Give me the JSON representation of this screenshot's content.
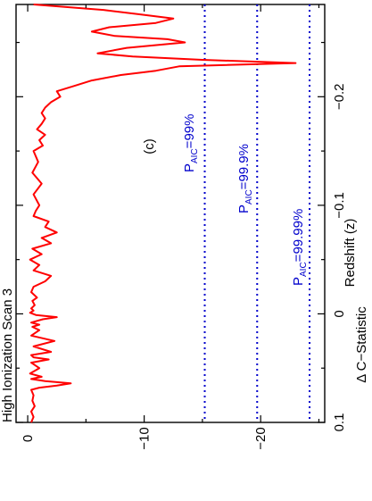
{
  "chart_data": {
    "type": "line",
    "title": "High Ionization Scan 3",
    "panel_label": "(c)",
    "xlabel": "Redshift (z)",
    "ylabel": "Δ C−Statistic",
    "xlim": [
      0.1,
      -0.285
    ],
    "ylim": [
      1,
      -25.5
    ],
    "x_ticks": [
      0.1,
      0,
      -0.1,
      -0.2
    ],
    "x_tick_labels": [
      "0.1",
      "0",
      "−0.1",
      "−0.2"
    ],
    "y_ticks": [
      0,
      -10,
      -20
    ],
    "y_tick_labels": [
      "0",
      "−10",
      "−20"
    ],
    "series": [
      {
        "color": "#ff0000",
        "x": [
          0.1,
          0.095,
          0.09,
          0.085,
          0.08,
          0.075,
          0.07,
          0.068,
          0.066,
          0.064,
          0.062,
          0.06,
          0.058,
          0.055,
          0.05,
          0.045,
          0.042,
          0.04,
          0.038,
          0.035,
          0.03,
          0.025,
          0.02,
          0.015,
          0.012,
          0.01,
          0.008,
          0.005,
          0.003,
          0.001,
          -0.001,
          -0.003,
          -0.005,
          -0.008,
          -0.012,
          -0.015,
          -0.02,
          -0.025,
          -0.03,
          -0.035,
          -0.04,
          -0.045,
          -0.05,
          -0.055,
          -0.06,
          -0.065,
          -0.07,
          -0.075,
          -0.08,
          -0.085,
          -0.09,
          -0.095,
          -0.1,
          -0.11,
          -0.12,
          -0.13,
          -0.14,
          -0.15,
          -0.155,
          -0.16,
          -0.165,
          -0.17,
          -0.175,
          -0.18,
          -0.185,
          -0.19,
          -0.195,
          -0.2,
          -0.205,
          -0.21,
          -0.215,
          -0.22,
          -0.224,
          -0.228,
          -0.231,
          -0.234,
          -0.237,
          -0.24,
          -0.245,
          -0.25,
          -0.253,
          -0.256,
          -0.26,
          -0.264,
          -0.268,
          -0.272,
          -0.276,
          -0.28,
          -0.285
        ],
        "y": [
          -0.3,
          -0.5,
          -0.3,
          -0.6,
          -0.4,
          -0.5,
          -0.3,
          -1.0,
          -2.5,
          -3.7,
          -1.5,
          -0.3,
          -1.2,
          -0.2,
          -1.0,
          -0.3,
          -1.8,
          -0.5,
          -0.3,
          -2.0,
          -0.5,
          -2.3,
          -0.3,
          -1.0,
          -0.4,
          -1.0,
          -0.3,
          -1.3,
          -2.5,
          -0.7,
          -0.2,
          -0.5,
          -0.3,
          -0.6,
          -0.4,
          -0.8,
          -0.3,
          -0.5,
          -1.5,
          -2.0,
          -0.5,
          -1.0,
          -0.2,
          -1.2,
          -0.4,
          -2.0,
          -1.2,
          -2.5,
          -1.5,
          -1.8,
          -0.5,
          -0.7,
          -1.0,
          -0.5,
          -1.2,
          -0.4,
          -0.9,
          -0.5,
          -1.3,
          -1.0,
          -1.5,
          -0.8,
          -1.2,
          -1.5,
          -1.2,
          -1.5,
          -2.0,
          -2.8,
          -2.5,
          -4.0,
          -5.5,
          -8.0,
          -11.0,
          -13.0,
          -23.0,
          -15.0,
          -9.0,
          -6.0,
          -8.5,
          -13.5,
          -12.0,
          -7.5,
          -5.5,
          -7.0,
          -11.0,
          -12.5,
          -9.5,
          -6.5,
          -0.5
        ]
      }
    ],
    "thresholds": [
      {
        "label_main": "P",
        "label_sub": "AIC",
        "label_rest": "=99%",
        "y": -15.2
      },
      {
        "label_main": "P",
        "label_sub": "AIC",
        "label_rest": "=99.9%",
        "y": -19.7
      },
      {
        "label_main": "P",
        "label_sub": "AIC",
        "label_rest": "=99.99%",
        "y": -24.2
      }
    ],
    "threshold_color": "#0000cc",
    "grid": false
  }
}
